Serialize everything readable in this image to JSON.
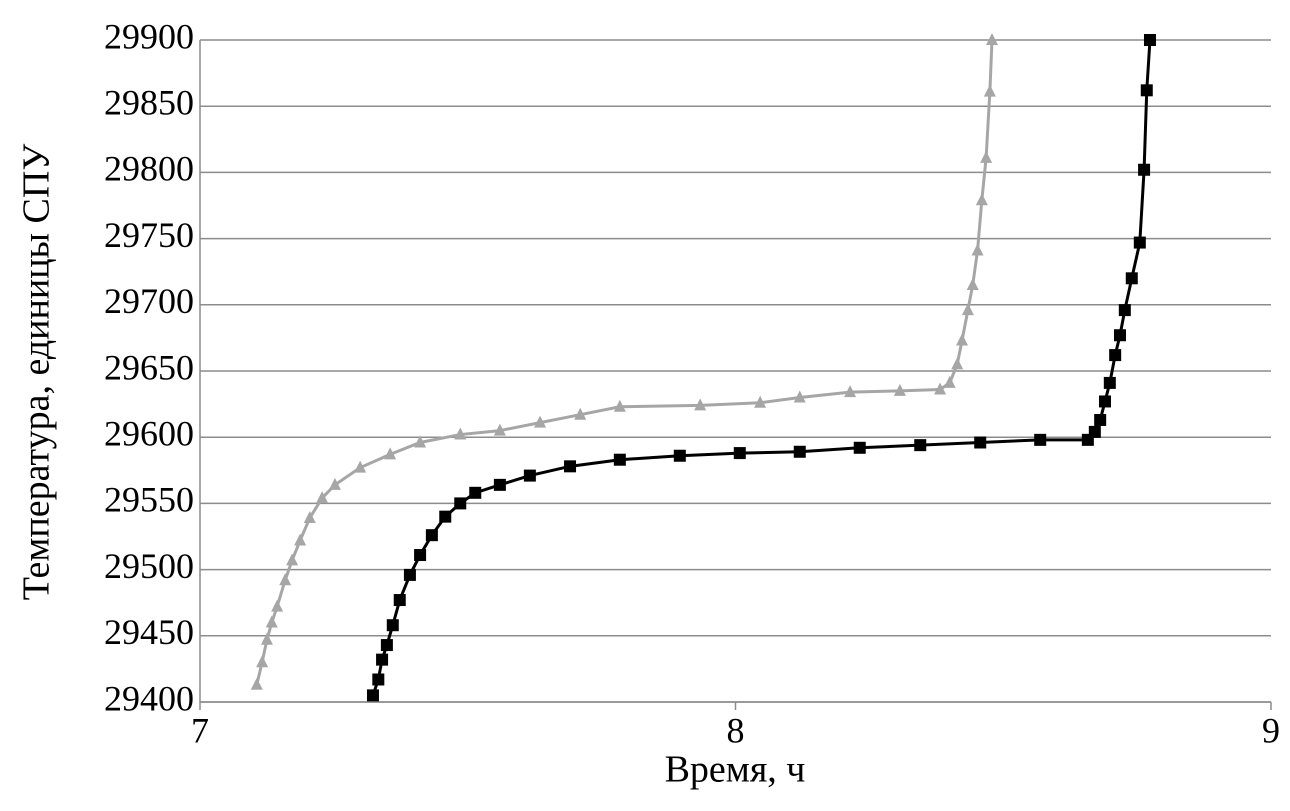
{
  "chart_data": {
    "type": "line",
    "xlabel": "Время, ч",
    "ylabel": "Температура, единицы СПУ",
    "xlim": [
      7,
      9
    ],
    "xticks": [
      7,
      8,
      9
    ],
    "ylim": [
      29400,
      29900
    ],
    "yticks": [
      29400,
      29450,
      29500,
      29550,
      29600,
      29650,
      29700,
      29750,
      29800,
      29850,
      29900
    ],
    "grid": true,
    "series": [
      {
        "color": "#a6a6a6",
        "marker": "triangle",
        "x": [
          7.106,
          7.116,
          7.125,
          7.134,
          7.144,
          7.159,
          7.172,
          7.187,
          7.205,
          7.228,
          7.252,
          7.299,
          7.355,
          7.411,
          7.486,
          7.56,
          7.635,
          7.71,
          7.784,
          7.934,
          8.046,
          8.12,
          8.214,
          8.307,
          8.382,
          8.4,
          8.414,
          8.423,
          8.434,
          8.443,
          8.452,
          8.46,
          8.468,
          8.475,
          8.479
        ],
        "values": [
          29413,
          29430,
          29447,
          29460,
          29472,
          29492,
          29507,
          29522,
          29539,
          29554,
          29564,
          29577,
          29587,
          29596,
          29602,
          29605,
          29611,
          29617,
          29623,
          29624,
          29626,
          29630,
          29634,
          29635,
          29636,
          29641,
          29655,
          29673,
          29696,
          29715,
          29741,
          29779,
          29811,
          29861,
          29900
        ]
      },
      {
        "color": "#000000",
        "marker": "square",
        "x": [
          7.323,
          7.333,
          7.34,
          7.349,
          7.36,
          7.373,
          7.392,
          7.411,
          7.433,
          7.458,
          7.486,
          7.514,
          7.56,
          7.616,
          7.691,
          7.784,
          7.896,
          8.008,
          8.12,
          8.232,
          8.345,
          8.457,
          8.569,
          8.658,
          8.671,
          8.681,
          8.69,
          8.699,
          8.709,
          8.718,
          8.727,
          8.74,
          8.755,
          8.763,
          8.768,
          8.774
        ],
        "values": [
          29405,
          29417,
          29432,
          29443,
          29458,
          29477,
          29496,
          29511,
          29526,
          29540,
          29550,
          29558,
          29564,
          29571,
          29578,
          29583,
          29586,
          29588,
          29589,
          29592,
          29594,
          29596,
          29598,
          29598,
          29604,
          29613,
          29627,
          29641,
          29662,
          29677,
          29696,
          29720,
          29747,
          29802,
          29862,
          29900
        ]
      }
    ]
  }
}
